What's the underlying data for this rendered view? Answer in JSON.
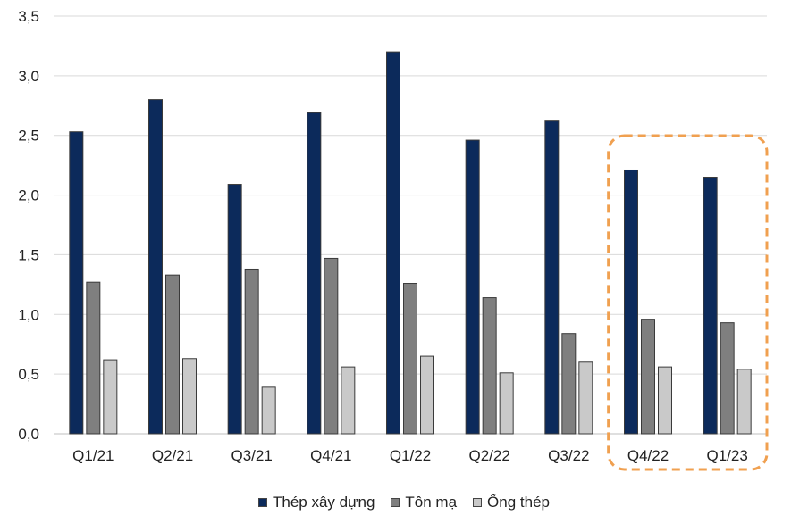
{
  "chart_data": {
    "type": "bar",
    "categories": [
      "Q1/21",
      "Q2/21",
      "Q3/21",
      "Q4/21",
      "Q1/22",
      "Q2/22",
      "Q3/22",
      "Q4/22",
      "Q1/23"
    ],
    "series": [
      {
        "name": "Thép xây dựng",
        "color": "#0c2a5b",
        "values": [
          2.53,
          2.8,
          2.09,
          2.69,
          3.2,
          2.46,
          2.62,
          2.21,
          2.15
        ]
      },
      {
        "name": "Tôn mạ",
        "color": "#7f7f7f",
        "values": [
          1.27,
          1.33,
          1.38,
          1.47,
          1.26,
          1.14,
          0.84,
          0.96,
          0.93
        ]
      },
      {
        "name": "Ống thép",
        "color": "#c9c9c9",
        "values": [
          0.62,
          0.63,
          0.39,
          0.56,
          0.65,
          0.51,
          0.6,
          0.56,
          0.54
        ]
      }
    ],
    "yticks": [
      "0,0",
      "0,5",
      "1,0",
      "1,5",
      "2,0",
      "2,5",
      "3,0",
      "3,5"
    ],
    "ylim": [
      0,
      3.5
    ],
    "grid": true,
    "legend_position": "bottom",
    "highlight": {
      "categories": [
        "Q4/22",
        "Q1/23"
      ],
      "color": "#f0a050",
      "style": "dashed-rounded-box"
    }
  }
}
